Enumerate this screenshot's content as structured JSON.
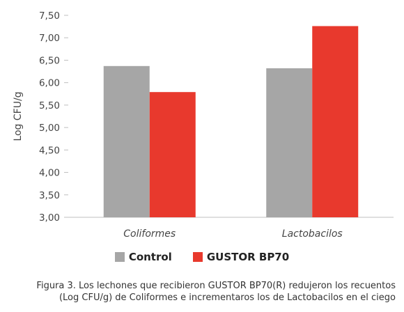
{
  "chart_data": {
    "type": "bar",
    "categories": [
      "Coliformes",
      "Lactobacilos"
    ],
    "series": [
      {
        "name": "Control",
        "values": [
          6.37,
          6.32
        ],
        "color": "#a6a6a6"
      },
      {
        "name": "GUSTOR BP70",
        "values": [
          5.79,
          7.26
        ],
        "color": "#e8392d"
      }
    ],
    "ylabel": "Log CFU/g",
    "ylim": [
      3.0,
      7.5
    ],
    "yticks": [
      "3,00",
      "3,50",
      "4,00",
      "4,50",
      "5,00",
      "5,50",
      "6,00",
      "6,50",
      "7,00",
      "7,50"
    ],
    "grid": false,
    "legend": "bottom"
  },
  "caption": {
    "line1": "Figura 3. Los lechones que recibieron GUSTOR BP70(R) redujeron los recuentos",
    "line2": "(Log CFU/g) de Coliformes e incrementaros los de Lactobacilos en el ciego"
  }
}
